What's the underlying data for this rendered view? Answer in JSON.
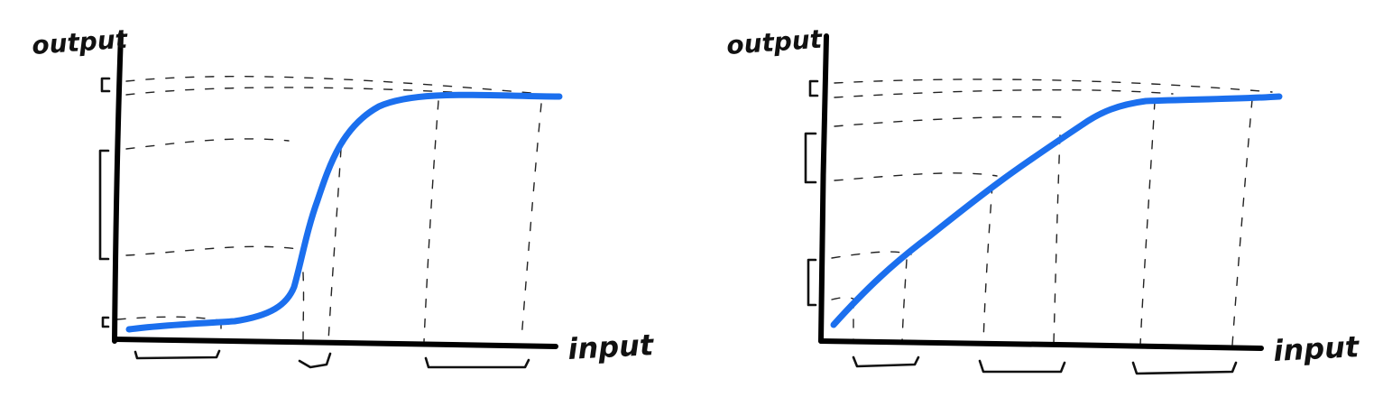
{
  "diagrams": [
    {
      "id": "left",
      "ylabel": "output",
      "xlabel": "input",
      "curve": "sigmoid"
    },
    {
      "id": "right",
      "ylabel": "output",
      "xlabel": "input",
      "curve": "linear-then-saturate"
    }
  ],
  "colors": {
    "curve": "#1b6fee",
    "ink": "#111111"
  }
}
